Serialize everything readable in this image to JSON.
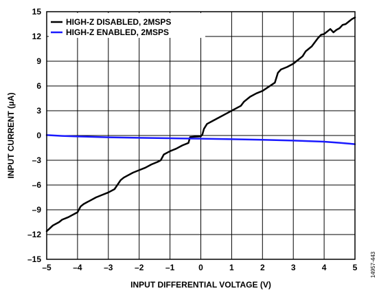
{
  "chart_data": {
    "type": "line",
    "xlabel": "INPUT DIFFERENTIAL VOLTAGE (V)",
    "ylabel": "INPUT CURRENT (µA)",
    "xlim": [
      -5,
      5
    ],
    "ylim": [
      -15,
      15
    ],
    "x_ticks": [
      -5,
      -4,
      -3,
      -2,
      -1,
      0,
      1,
      2,
      3,
      4,
      5
    ],
    "y_ticks": [
      -15,
      -12,
      -9,
      -6,
      -3,
      0,
      3,
      6,
      9,
      12,
      15
    ],
    "x_tick_labels": [
      "–5",
      "–4",
      "–3",
      "–2",
      "–1",
      "0",
      "1",
      "2",
      "3",
      "4",
      "5"
    ],
    "y_tick_labels": [
      "–15",
      "–12",
      "–9",
      "–6",
      "–3",
      "0",
      "3",
      "6",
      "9",
      "12",
      "15"
    ],
    "grid": true,
    "legend_position": "top-left",
    "figure_id": "14957-443",
    "series": [
      {
        "name": "HIGH-Z DISABLED, 2MSPS",
        "color": "#000000",
        "x": [
          -5.0,
          -4.8,
          -4.6,
          -4.5,
          -4.3,
          -4.1,
          -4.0,
          -3.9,
          -3.8,
          -3.6,
          -3.4,
          -3.2,
          -3.0,
          -2.8,
          -2.6,
          -2.5,
          -2.4,
          -2.2,
          -2.0,
          -1.8,
          -1.6,
          -1.4,
          -1.3,
          -1.2,
          -1.0,
          -0.8,
          -0.6,
          -0.4,
          -0.35,
          -0.2,
          0.0,
          0.05,
          0.1,
          0.2,
          0.4,
          0.6,
          0.8,
          1.0,
          1.2,
          1.3,
          1.4,
          1.6,
          1.8,
          2.0,
          2.2,
          2.4,
          2.5,
          2.6,
          2.8,
          3.0,
          3.2,
          3.3,
          3.4,
          3.6,
          3.7,
          3.8,
          3.9,
          4.0,
          4.1,
          4.2,
          4.3,
          4.4,
          4.5,
          4.6,
          4.7,
          4.8,
          4.9,
          5.0
        ],
        "y": [
          -11.6,
          -10.9,
          -10.5,
          -10.2,
          -9.9,
          -9.5,
          -9.3,
          -8.6,
          -8.3,
          -7.9,
          -7.5,
          -7.2,
          -6.9,
          -6.5,
          -5.4,
          -5.1,
          -4.9,
          -4.5,
          -4.2,
          -3.9,
          -3.5,
          -3.2,
          -3.0,
          -2.3,
          -1.9,
          -1.6,
          -1.2,
          -0.9,
          -0.2,
          -0.15,
          -0.1,
          0.1,
          0.8,
          1.4,
          1.8,
          2.2,
          2.6,
          3.0,
          3.4,
          3.6,
          4.1,
          4.7,
          5.1,
          5.4,
          5.9,
          6.4,
          7.6,
          8.0,
          8.3,
          8.7,
          9.3,
          9.6,
          10.2,
          10.8,
          11.3,
          11.8,
          12.2,
          12.3,
          12.6,
          12.9,
          12.5,
          12.8,
          13.0,
          13.4,
          13.5,
          13.8,
          14.1,
          14.3
        ]
      },
      {
        "name": "HIGH-Z ENABLED, 2MSPS",
        "color": "#1a1aff",
        "x": [
          -5.0,
          -4.5,
          -4.0,
          -3.0,
          -2.0,
          -1.0,
          0.0,
          1.0,
          2.0,
          3.0,
          4.0,
          4.5,
          5.0
        ],
        "y": [
          0.05,
          -0.05,
          -0.12,
          -0.22,
          -0.28,
          -0.33,
          -0.38,
          -0.45,
          -0.52,
          -0.62,
          -0.75,
          -0.88,
          -1.05
        ]
      }
    ]
  }
}
